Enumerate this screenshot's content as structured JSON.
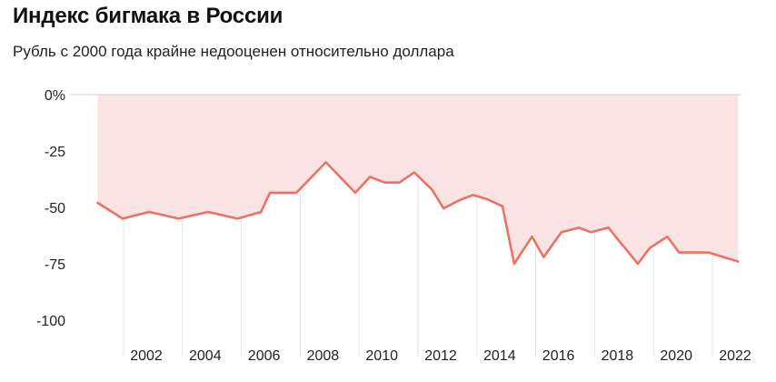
{
  "title": "Индекс бигмака в России",
  "subtitle": "Рубль с 2000 года крайне недооценен относительно доллара",
  "colors": {
    "line": "#e8736a",
    "fill": "#fbe3e3",
    "grid": "#e6e6e6",
    "zero_line": "#cfcfcf"
  },
  "chart_data": {
    "type": "area",
    "title": "Индекс бигмака в России",
    "subtitle": "Рубль с 2000 года крайне недооценен относительно доллара",
    "y_tick_labels": [
      "0%",
      "-25",
      "-50",
      "-75",
      "-100"
    ],
    "y_ticks": [
      0,
      -25,
      -50,
      -75,
      -100
    ],
    "ylim": [
      -100,
      0
    ],
    "x_tick_labels": [
      "2002",
      "2004",
      "2006",
      "2008",
      "2010",
      "2012",
      "2014",
      "2016",
      "2018",
      "2020",
      "2022"
    ],
    "x_ticks": [
      2002,
      2004,
      2006,
      2008,
      2010,
      2012,
      2014,
      2016,
      2018,
      2020,
      2022
    ],
    "xlim": [
      2000.25,
      2022.1
    ],
    "grid": "vertical",
    "series": [
      {
        "x": [
          2000.25,
          2001.1,
          2002,
          2003,
          2004,
          2005,
          2005.8,
          2006.1,
          2007,
          2008,
          2009,
          2009.5,
          2010,
          2010.5,
          2011,
          2011.6,
          2012,
          2012.5,
          2013,
          2013.5,
          2014,
          2014.4,
          2015,
          2015.4,
          2016,
          2016.6,
          2017,
          2017.6,
          2018,
          2018.6,
          2019,
          2019.6,
          2020,
          2021,
          2022
        ],
        "y": [
          -48,
          -55,
          -52,
          -55,
          -52,
          -55,
          -52,
          -43.5,
          -43.5,
          -30,
          -43.5,
          -36.5,
          -39,
          -39,
          -34.5,
          -42,
          -50.5,
          -47,
          -44.5,
          -46.5,
          -49.5,
          -75,
          -63,
          -72,
          -61,
          -59,
          -61,
          -59,
          -65.5,
          -75,
          -68,
          -63,
          -70,
          -70,
          -74
        ]
      }
    ]
  }
}
